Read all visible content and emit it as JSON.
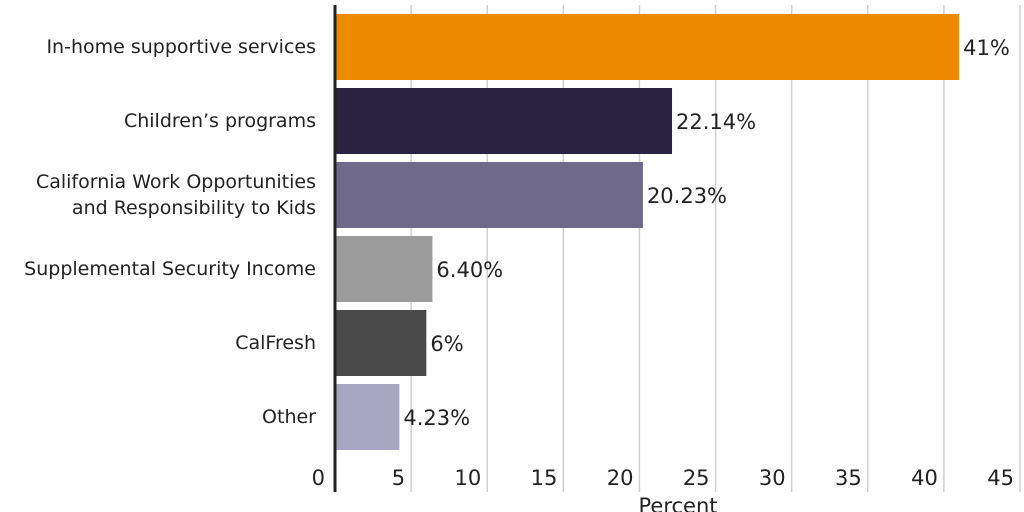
{
  "chart_data": {
    "type": "bar",
    "orientation": "horizontal",
    "categories": [
      "In-home supportive services",
      "Children’s programs",
      "California Work Opportunities\nand Responsibility to Kids",
      "Supplemental Security Income",
      "CalFresh",
      "Other"
    ],
    "values": [
      41,
      22.14,
      20.23,
      6.4,
      6,
      4.23
    ],
    "value_labels": [
      "41%",
      "22.14%",
      "20.23%",
      "6.40%",
      "6%",
      "4.23%"
    ],
    "colors": [
      "#ee8a00",
      "#29233f",
      "#6f6a8a",
      "#9b9b9b",
      "#4a4a4a",
      "#a9a6c1"
    ],
    "xlabel": "Percent",
    "xlim": [
      0,
      45
    ],
    "xticks": [
      0,
      5,
      10,
      15,
      20,
      25,
      30,
      35,
      40,
      45
    ],
    "grid": true
  }
}
